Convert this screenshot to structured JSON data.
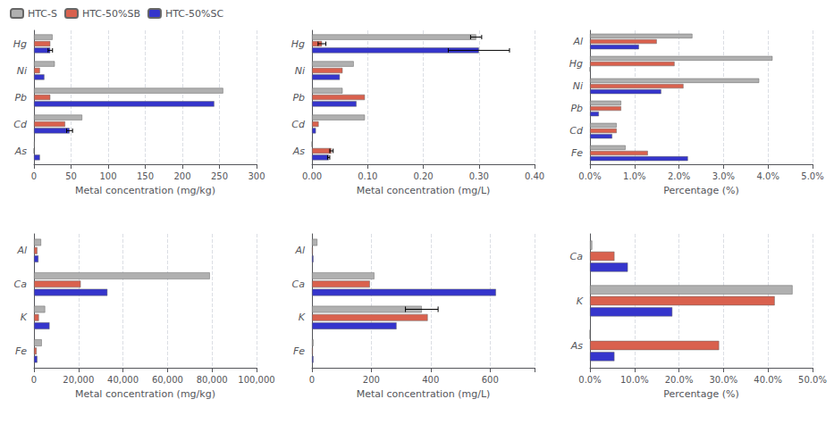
{
  "chart_data": [
    {
      "type": "bar",
      "orientation": "horizontal",
      "grid": true,
      "legend": "upper left",
      "categories": [
        "Hg",
        "Ni",
        "Pb",
        "Cd",
        "As"
      ],
      "series": [
        {
          "name": "HTC-S",
          "color": "#b0b0b0",
          "values": [
            25,
            28,
            255,
            65,
            1
          ],
          "errors": [
            0,
            0,
            0,
            0,
            0
          ]
        },
        {
          "name": "HTC-50%SB",
          "color": "#d9614e",
          "values": [
            22,
            8,
            22,
            42,
            0
          ],
          "errors": [
            0,
            0,
            0,
            0,
            0
          ]
        },
        {
          "name": "HTC-50%SC",
          "color": "#3535cc",
          "values": [
            22,
            14,
            243,
            48,
            8
          ],
          "errors": [
            3,
            0,
            0,
            4,
            0
          ]
        }
      ],
      "xlabel": "Metal concentration (mg/kg)",
      "xlim": [
        0,
        300
      ],
      "xticks": [
        0,
        50,
        100,
        150,
        200,
        250,
        300
      ]
    },
    {
      "type": "bar",
      "orientation": "horizontal",
      "grid": true,
      "categories": [
        "Hg",
        "Ni",
        "Pb",
        "Cd",
        "As"
      ],
      "series": [
        {
          "name": "HTC-S",
          "color": "#b0b0b0",
          "values": [
            0.295,
            0.075,
            0.055,
            0.095,
            0.0
          ],
          "errors": [
            0.01,
            0,
            0,
            0,
            0
          ]
        },
        {
          "name": "HTC-50%SB",
          "color": "#d9614e",
          "values": [
            0.018,
            0.055,
            0.095,
            0.012,
            0.035
          ],
          "errors": [
            0.007,
            0,
            0,
            0,
            0.003
          ]
        },
        {
          "name": "HTC-50%SC",
          "color": "#3535cc",
          "values": [
            0.3,
            0.05,
            0.08,
            0.007,
            0.03
          ],
          "errors": [
            0.055,
            0,
            0,
            0,
            0.002
          ]
        }
      ],
      "xlabel": "Metal concentration (mg/L)",
      "xlim": [
        0,
        0.4
      ],
      "xticks": [
        {
          "value": 0,
          "label": "0.00"
        },
        {
          "value": 0.1,
          "label": "0.10"
        },
        {
          "value": 0.2,
          "label": "0.20"
        },
        {
          "value": 0.3,
          "label": "0.30"
        },
        {
          "value": 0.4,
          "label": "0.40"
        }
      ]
    },
    {
      "type": "bar",
      "orientation": "horizontal",
      "grid": true,
      "categories": [
        "Al",
        "Hg",
        "Ni",
        "Pb",
        "Cd",
        "Fe"
      ],
      "series": [
        {
          "name": "HTC-S",
          "color": "#b0b0b0",
          "values": [
            0.023,
            0.041,
            0.038,
            0.007,
            0.006,
            0.008
          ]
        },
        {
          "name": "HTC-50%SB",
          "color": "#d9614e",
          "values": [
            0.015,
            0.019,
            0.021,
            0.007,
            0.006,
            0.013
          ]
        },
        {
          "name": "HTC-50%SC",
          "color": "#3535cc",
          "values": [
            0.011,
            0.0,
            0.016,
            0.002,
            0.005,
            0.022
          ]
        }
      ],
      "xlabel": "Percentage (%)",
      "xlim": [
        0,
        0.05
      ],
      "xticks": [
        {
          "value": 0,
          "label": "0.0%"
        },
        {
          "value": 0.01,
          "label": "1.0%"
        },
        {
          "value": 0.02,
          "label": "2.0%"
        },
        {
          "value": 0.03,
          "label": "3.0%"
        },
        {
          "value": 0.04,
          "label": "4.0%"
        },
        {
          "value": 0.05,
          "label": "5.0%"
        }
      ]
    },
    {
      "type": "bar",
      "orientation": "horizontal",
      "grid": true,
      "categories": [
        "Al",
        "Ca",
        "K",
        "Fe"
      ],
      "series": [
        {
          "name": "HTC-S",
          "color": "#b0b0b0",
          "values": [
            3200,
            79000,
            5000,
            3500
          ],
          "errors": [
            0,
            0,
            0,
            0
          ]
        },
        {
          "name": "HTC-50%SB",
          "color": "#d9614e",
          "values": [
            1500,
            21000,
            2200,
            1200
          ],
          "errors": [
            0,
            0,
            0,
            0
          ]
        },
        {
          "name": "HTC-50%SC",
          "color": "#3535cc",
          "values": [
            2000,
            33000,
            7000,
            1500
          ],
          "errors": [
            0,
            0,
            0,
            0
          ]
        }
      ],
      "xlabel": "Metal concentration (mg/kg)",
      "xlim": [
        0,
        100000
      ],
      "xticks": [
        0,
        {
          "value": 20000,
          "label": "20,000"
        },
        {
          "value": 40000,
          "label": "40,000"
        },
        {
          "value": 60000,
          "label": "60,000"
        },
        {
          "value": 80000,
          "label": "80,000"
        },
        {
          "value": 100000,
          "label": "100,000"
        }
      ]
    },
    {
      "type": "bar",
      "orientation": "horizontal",
      "grid": true,
      "categories": [
        "Al",
        "Ca",
        "K",
        "Fe"
      ],
      "series": [
        {
          "name": "HTC-S",
          "color": "#b0b0b0",
          "values": [
            18,
            210,
            370,
            5
          ],
          "errors": [
            0,
            0,
            55,
            0
          ]
        },
        {
          "name": "HTC-50%SB",
          "color": "#d9614e",
          "values": [
            3,
            195,
            390,
            3
          ],
          "errors": [
            0,
            0,
            0,
            0
          ]
        },
        {
          "name": "HTC-50%SC",
          "color": "#3535cc",
          "values": [
            5,
            620,
            285,
            5
          ],
          "errors": [
            0,
            0,
            0,
            0
          ]
        }
      ],
      "xlabel": "Metal concentration (mg/L)",
      "xlim": [
        0,
        750
      ],
      "xticks": [
        0,
        200,
        400,
        600
      ]
    },
    {
      "type": "bar",
      "orientation": "horizontal",
      "grid": true,
      "categories": [
        "Ca",
        "K",
        "As"
      ],
      "series": [
        {
          "name": "HTC-S",
          "color": "#b0b0b0",
          "values": [
            0.005,
            0.455,
            0.0
          ]
        },
        {
          "name": "HTC-50%SB",
          "color": "#d9614e",
          "values": [
            0.055,
            0.415,
            0.29
          ]
        },
        {
          "name": "HTC-50%SC",
          "color": "#3535cc",
          "values": [
            0.085,
            0.185,
            0.055
          ]
        }
      ],
      "xlabel": "Percentage (%)",
      "xlim": [
        0,
        0.5
      ],
      "xticks": [
        {
          "value": 0,
          "label": "0.0%"
        },
        {
          "value": 0.1,
          "label": "10.0%"
        },
        {
          "value": 0.2,
          "label": "20.0%"
        },
        {
          "value": 0.3,
          "label": "30.0%"
        },
        {
          "value": 0.4,
          "label": "40.0%"
        },
        {
          "value": 0.5,
          "label": "50.0%"
        }
      ]
    }
  ]
}
